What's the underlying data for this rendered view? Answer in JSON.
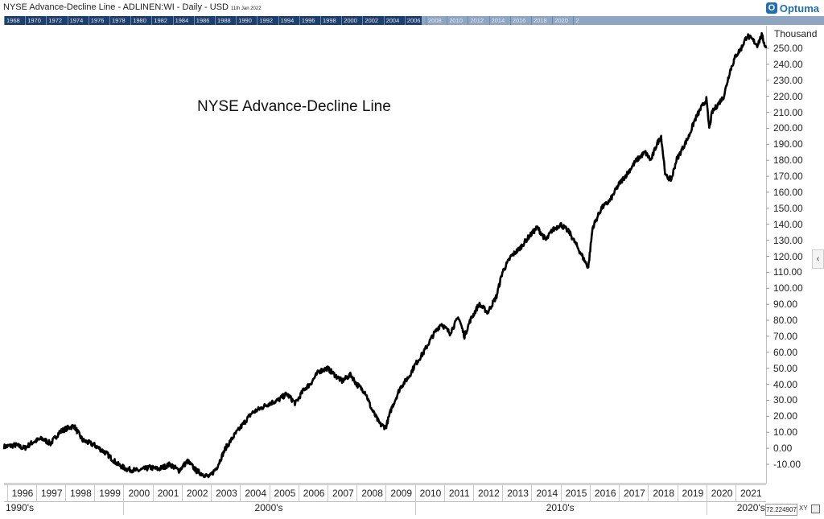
{
  "header": {
    "title": "NYSE  Advance-Decline Line - ADLINEN:WI - Daily - USD",
    "date": "11th Jan 2022",
    "logo_text": "Optuma",
    "logo_mark": "O"
  },
  "navigator": {
    "years": [
      "1968",
      "1970",
      "1972",
      "1974",
      "1976",
      "1978",
      "1980",
      "1982",
      "1984",
      "1986",
      "1988",
      "1990",
      "1992",
      "1994",
      "1996",
      "1998",
      "2000",
      "2002",
      "2004",
      "2006",
      "2008",
      "2010",
      "2012",
      "2014",
      "2016",
      "2018",
      "2020",
      "2"
    ]
  },
  "colors": {
    "line": "#000000",
    "nav_bg": "#1d3f6e",
    "nav_window": "#8fa6c2",
    "brand": "#1f6fb5"
  },
  "icons": {
    "collapse": "chevron-left-icon",
    "logo": "optuma-logo-icon"
  },
  "collapse_glyph": "‹",
  "chart_data": {
    "type": "line",
    "title": "NYSE  Advance-Decline Line",
    "ylabel": "Thousand",
    "xlabel": "",
    "ylim": [
      -20,
      262
    ],
    "xlim": [
      1995.9,
      2022.05
    ],
    "y_ticks": [
      "250.00",
      "240.00",
      "230.00",
      "220.00",
      "210.00",
      "200.00",
      "190.00",
      "180.00",
      "170.00",
      "160.00",
      "150.00",
      "140.00",
      "130.00",
      "120.00",
      "110.00",
      "100.00",
      "90.00",
      "80.00",
      "70.00",
      "60.00",
      "50.00",
      "40.00",
      "30.00",
      "20.00",
      "10.00",
      "0.00",
      "-10.00"
    ],
    "x_ticks": [
      "1996",
      "1997",
      "1998",
      "1999",
      "2000",
      "2001",
      "2002",
      "2003",
      "2004",
      "2005",
      "2006",
      "2007",
      "2008",
      "2009",
      "2010",
      "2011",
      "2012",
      "2013",
      "2014",
      "2015",
      "2016",
      "2017",
      "2018",
      "2019",
      "2020",
      "2021"
    ],
    "decades": [
      "1990's",
      "2000's",
      "2010's",
      "2020's"
    ],
    "grid": false,
    "series": [
      {
        "x": [
          1995.9,
          1996.3,
          1996.6,
          1996.9,
          1997.2,
          1997.5,
          1997.8,
          1998.0,
          1998.3,
          1998.6,
          1999.0,
          1999.4,
          1999.8,
          2000.1,
          2000.5,
          2000.9,
          2001.2,
          2001.6,
          2001.9,
          2002.2,
          2002.5,
          2002.7,
          2002.95,
          2003.2,
          2003.5,
          2003.8,
          2004.1,
          2004.4,
          2004.7,
          2005.0,
          2005.3,
          2005.6,
          2005.9,
          2006.2,
          2006.4,
          2006.7,
          2007.0,
          2007.3,
          2007.5,
          2007.8,
          2008.0,
          2008.3,
          2008.5,
          2008.8,
          2009.0,
          2009.2,
          2009.5,
          2009.8,
          2010.0,
          2010.3,
          2010.6,
          2010.9,
          2011.2,
          2011.5,
          2011.7,
          2011.9,
          2012.2,
          2012.5,
          2012.8,
          2013.0,
          2013.3,
          2013.6,
          2013.9,
          2014.2,
          2014.5,
          2014.7,
          2015.0,
          2015.3,
          2015.6,
          2015.8,
          2015.95,
          2016.1,
          2016.4,
          2016.7,
          2017.0,
          2017.3,
          2017.6,
          2017.9,
          2018.1,
          2018.3,
          2018.45,
          2018.6,
          2018.8,
          2018.97,
          2019.2,
          2019.4,
          2019.6,
          2019.8,
          2020.0,
          2020.1,
          2020.2,
          2020.4,
          2020.6,
          2020.8,
          2021.0,
          2021.2,
          2021.4,
          2021.6,
          2021.75,
          2021.9,
          2022.05
        ],
        "y": [
          1,
          2,
          0,
          4,
          6,
          3,
          10,
          12,
          14,
          5,
          2,
          -3,
          -10,
          -13,
          -14,
          -12,
          -13,
          -10,
          -14,
          -8,
          -14,
          -16,
          -18,
          -12,
          0,
          8,
          15,
          22,
          25,
          28,
          30,
          34,
          28,
          37,
          40,
          48,
          50,
          45,
          42,
          46,
          40,
          35,
          25,
          15,
          13,
          25,
          38,
          45,
          52,
          60,
          70,
          78,
          72,
          82,
          70,
          80,
          90,
          85,
          95,
          110,
          120,
          125,
          132,
          138,
          130,
          136,
          140,
          135,
          125,
          118,
          113,
          138,
          150,
          155,
          165,
          172,
          180,
          185,
          180,
          190,
          195,
          170,
          168,
          180,
          188,
          195,
          205,
          212,
          218,
          200,
          210,
          215,
          220,
          235,
          245,
          250,
          258,
          255,
          252,
          258,
          250
        ]
      }
    ]
  },
  "footer": {
    "cursor_value": "72.224907",
    "xy_label": "XY"
  }
}
